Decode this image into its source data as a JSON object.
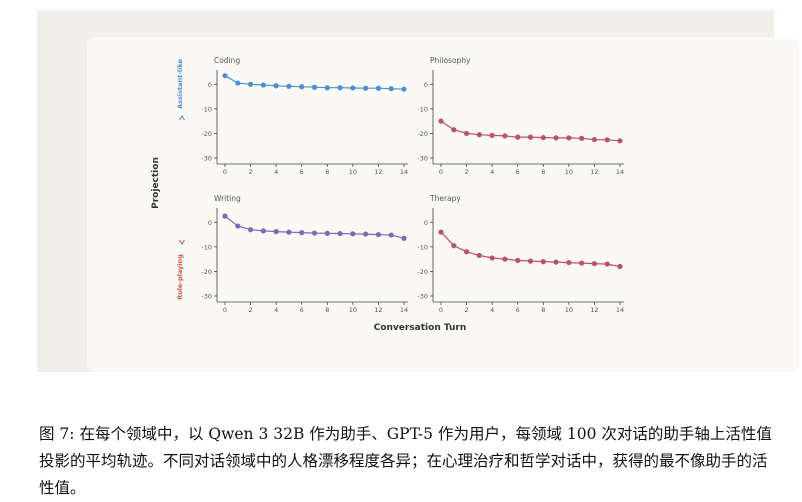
{
  "caption": {
    "label": "图 7:",
    "text": "在每个领域中，以 Qwen 3 32B 作为助手、GPT-5 作为用户，每领域 100 次对话的助手轴上活性值投影的平均轨迹。不同对话领域中的人格漂移程度各异；在心理治疗和哲学对话中，获得的最不像助手的活性值。"
  },
  "chart_data": {
    "type": "line",
    "xlabel": "Conversation Turn",
    "ylabel": "Projection",
    "y_axis_annotations": {
      "top": "Assistant-like",
      "bottom": "Role-playing"
    },
    "xlim": [
      0,
      14
    ],
    "ylim": [
      -30,
      5
    ],
    "x_ticks": [
      0,
      2,
      4,
      6,
      8,
      10,
      12,
      14
    ],
    "y_ticks": [
      0,
      -10,
      -20,
      -30
    ],
    "grid": false,
    "panels": [
      {
        "title": "Coding",
        "color": "#4a8fd4",
        "x": [
          0,
          1,
          2,
          3,
          4,
          5,
          6,
          7,
          8,
          9,
          10,
          11,
          12,
          13,
          14
        ],
        "values": [
          3.5,
          0.5,
          0,
          -0.3,
          -0.6,
          -0.8,
          -1,
          -1.2,
          -1.4,
          -1.4,
          -1.5,
          -1.6,
          -1.6,
          -1.8,
          -2
        ]
      },
      {
        "title": "Philosophy",
        "color": "#c0506a",
        "x": [
          0,
          1,
          2,
          3,
          4,
          5,
          6,
          7,
          8,
          9,
          10,
          11,
          12,
          13,
          14
        ],
        "values": [
          -15,
          -18.5,
          -20,
          -20.5,
          -20.8,
          -21,
          -21.5,
          -21.5,
          -21.7,
          -21.8,
          -21.8,
          -22,
          -22.5,
          -22.6,
          -23
        ]
      },
      {
        "title": "Writing",
        "color": "#7b6bb5",
        "x": [
          0,
          1,
          2,
          3,
          4,
          5,
          6,
          7,
          8,
          9,
          10,
          11,
          12,
          13,
          14
        ],
        "values": [
          2.5,
          -1.5,
          -3,
          -3.5,
          -3.8,
          -4,
          -4.2,
          -4.4,
          -4.5,
          -4.6,
          -4.7,
          -4.8,
          -5,
          -5.2,
          -6.5
        ]
      },
      {
        "title": "Therapy",
        "color": "#c0506a",
        "x": [
          0,
          1,
          2,
          3,
          4,
          5,
          6,
          7,
          8,
          9,
          10,
          11,
          12,
          13,
          14
        ],
        "values": [
          -4,
          -9.5,
          -12,
          -13.5,
          -14.5,
          -15,
          -15.5,
          -15.8,
          -16,
          -16.2,
          -16.4,
          -16.6,
          -16.8,
          -17,
          -18
        ]
      }
    ]
  }
}
